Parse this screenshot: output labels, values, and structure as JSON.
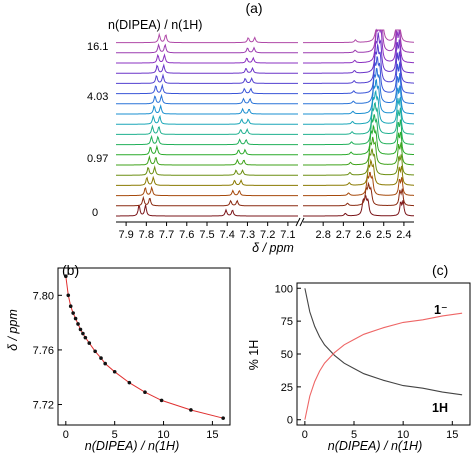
{
  "panel_a": {
    "panel_label": "(a)",
    "ratio_header": "n(DIPEA) / n(1H)",
    "ratio_labels": [
      "16.1",
      "4.03",
      "0.97",
      "0"
    ],
    "x_label": "δ / ppm",
    "x_ticks_left": [
      "7.9",
      "7.8",
      "7.7",
      "7.6",
      "7.5",
      "7.4",
      "7.3",
      "7.2",
      "7.1"
    ],
    "x_ticks_right": [
      "2.8",
      "2.7",
      "2.6",
      "2.5",
      "2.4"
    ]
  },
  "panel_b": {
    "panel_label": "(b)",
    "y_label": "δ / ppm",
    "x_label": "n(DIPEA) / n(1H)",
    "y_ticks": [
      "7.72",
      "7.76",
      "7.80"
    ],
    "x_ticks": [
      "0",
      "5",
      "10",
      "15"
    ]
  },
  "panel_c": {
    "panel_label": "(c)",
    "y_label": "% 1H",
    "x_label": "n(DIPEA) / n(1H)",
    "y_ticks": [
      "0",
      "25",
      "50",
      "75",
      "100"
    ],
    "x_ticks": [
      "0",
      "5",
      "10",
      "15"
    ],
    "label_anion": "1⁻",
    "label_neutral": "1H"
  },
  "chart_data": [
    {
      "type": "line",
      "title": "(a)",
      "xlabel": "δ / ppm",
      "ylabel": "",
      "axis_reversed": true,
      "xlim_left_segment": [
        7.05,
        7.95
      ],
      "xlim_right_segment": [
        2.35,
        2.9
      ],
      "series_count": 18,
      "peak_shift": {
        "aromatic_doublet_1": [
          7.82,
          7.72
        ],
        "aromatic_doublet_2": [
          7.39,
          7.28
        ],
        "aliphatic_peak_1": [
          2.59,
          2.52
        ],
        "aliphatic_peak_2": [
          2.41,
          2.43
        ]
      },
      "labeled_ratios": [
        "16.1",
        "4.03",
        "0.97",
        "0"
      ],
      "colors": [
        "#7a1418",
        "#8a2a10",
        "#a64a0c",
        "#8a7a00",
        "#6b8e10",
        "#3fa21a",
        "#2aaa2a",
        "#22b05a",
        "#1fb08f",
        "#1aa6b8",
        "#1a8fd0",
        "#2a74d8",
        "#3a55d8",
        "#5240d0",
        "#6a34c8",
        "#8a30c0",
        "#9c3cb0",
        "#b04aa8"
      ]
    },
    {
      "type": "scatter",
      "title": "(b)",
      "xlabel": "n(DIPEA) / n(1H)",
      "ylabel": "δ / ppm",
      "xlim": [
        -0.8,
        16.8
      ],
      "ylim": [
        7.705,
        7.82
      ],
      "series": [
        {
          "name": "",
          "x": [
            0,
            0.25,
            0.5,
            0.75,
            1.0,
            1.25,
            1.5,
            1.75,
            2.0,
            2.4,
            3.0,
            3.6,
            4.03,
            5.0,
            6.5,
            8.1,
            9.8,
            12.8,
            16.1
          ],
          "y": [
            7.814,
            7.8,
            7.792,
            7.787,
            7.783,
            7.779,
            7.775,
            7.772,
            7.769,
            7.765,
            7.759,
            7.754,
            7.75,
            7.744,
            7.736,
            7.729,
            7.723,
            7.716,
            7.71
          ]
        }
      ],
      "fit_color": "#e03030",
      "marker_color": "#111111"
    },
    {
      "type": "line",
      "title": "(c)",
      "xlabel": "n(DIPEA) / n(1H)",
      "ylabel": "% 1H",
      "xlim": [
        -0.8,
        16.8
      ],
      "ylim": [
        -4,
        104
      ],
      "series": [
        {
          "name": "1H",
          "color": "#444444",
          "x": [
            0,
            0.5,
            1,
            1.5,
            2,
            3,
            4,
            5,
            6,
            8,
            10,
            12,
            14,
            16
          ],
          "y": [
            100,
            82,
            71,
            63,
            57,
            49,
            43,
            39,
            35,
            30,
            26,
            24,
            21,
            19
          ]
        },
        {
          "name": "1⁻",
          "color": "#ee6666",
          "x": [
            0,
            0.5,
            1,
            1.5,
            2,
            3,
            4,
            5,
            6,
            8,
            10,
            12,
            14,
            16
          ],
          "y": [
            0,
            18,
            29,
            37,
            43,
            51,
            57,
            61,
            65,
            70,
            74,
            76,
            79,
            81
          ]
        }
      ]
    }
  ]
}
